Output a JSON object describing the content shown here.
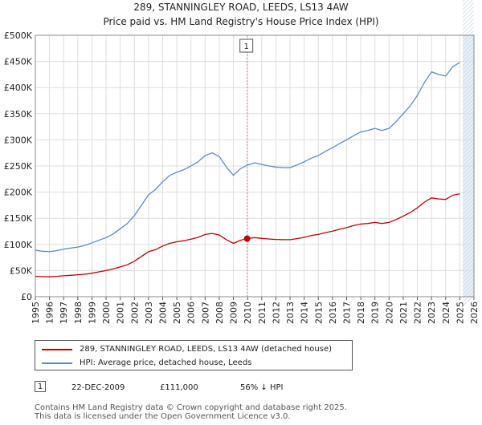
{
  "title_line1": "289, STANNINGLEY ROAD, LEEDS, LS13 4AW",
  "title_line2": "Price paid vs. HM Land Registry's House Price Index (HPI)",
  "colors": {
    "property": "#c00000",
    "hpi": "#5b8bd0",
    "marker_line": "#e08080",
    "future_shade": "#e8eef8",
    "grid": "#dddddd"
  },
  "legend": {
    "property_label": "289, STANNINGLEY ROAD, LEEDS, LS13 4AW (detached house)",
    "hpi_label": "HPI: Average price, detached house, Leeds"
  },
  "annotation": {
    "marker": "1",
    "date": "22-DEC-2009",
    "price": "£111,000",
    "hpi_diff": "56% ↓ HPI"
  },
  "footer_line1": "Contains HM Land Registry data © Crown copyright and database right 2025.",
  "footer_line2": "This data is licensed under the Open Government Licence v3.0.",
  "chart_data": {
    "type": "line",
    "title": "289, STANNINGLEY ROAD, LEEDS, LS13 4AW",
    "subtitle": "Price paid vs. HM Land Registry's House Price Index (HPI)",
    "xlabel": "",
    "ylabel": "",
    "xlim": [
      1995,
      2026
    ],
    "ylim": [
      0,
      500000
    ],
    "y_ticks": [
      0,
      50000,
      100000,
      150000,
      200000,
      250000,
      300000,
      350000,
      400000,
      450000,
      500000
    ],
    "y_tick_labels": [
      "£0",
      "£50K",
      "£100K",
      "£150K",
      "£200K",
      "£250K",
      "£300K",
      "£350K",
      "£400K",
      "£450K",
      "£500K"
    ],
    "x_ticks": [
      1995,
      1996,
      1997,
      1998,
      1999,
      2000,
      2001,
      2002,
      2003,
      2004,
      2005,
      2006,
      2007,
      2008,
      2009,
      2010,
      2011,
      2012,
      2013,
      2014,
      2015,
      2016,
      2017,
      2018,
      2019,
      2020,
      2021,
      2022,
      2023,
      2024,
      2025,
      2026
    ],
    "x_tick_labels": [
      "1995",
      "1996",
      "1997",
      "1998",
      "1999",
      "2000",
      "2001",
      "2002",
      "2003",
      "2004",
      "2005",
      "2006",
      "2007",
      "2008",
      "2009",
      "2010",
      "2011",
      "2012",
      "2013",
      "2014",
      "2015",
      "2016",
      "2017",
      "2018",
      "2019",
      "2020",
      "2021",
      "2022",
      "2023",
      "2024",
      "2025",
      "2026"
    ],
    "future_shade_start": 2025.2,
    "grid": true,
    "sale_marker": {
      "label": "1",
      "x": 2009.97,
      "y": 111000
    },
    "series": [
      {
        "name": "HPI: Average price, detached house, Leeds",
        "x": [
          1995.0,
          1995.5,
          1996.0,
          1996.5,
          1997.0,
          1997.5,
          1998.0,
          1998.5,
          1999.0,
          1999.5,
          2000.0,
          2000.5,
          2001.0,
          2001.5,
          2002.0,
          2002.5,
          2003.0,
          2003.5,
          2004.0,
          2004.5,
          2005.0,
          2005.5,
          2006.0,
          2006.5,
          2007.0,
          2007.5,
          2008.0,
          2008.5,
          2009.0,
          2009.5,
          2010.0,
          2010.5,
          2011.0,
          2011.5,
          2012.0,
          2012.5,
          2013.0,
          2013.5,
          2014.0,
          2014.5,
          2015.0,
          2015.5,
          2016.0,
          2016.5,
          2017.0,
          2017.5,
          2018.0,
          2018.5,
          2019.0,
          2019.5,
          2020.0,
          2020.5,
          2021.0,
          2021.5,
          2022.0,
          2022.5,
          2023.0,
          2023.5,
          2024.0,
          2024.5,
          2025.0
        ],
        "values": [
          89000,
          87000,
          86000,
          88000,
          91000,
          93000,
          95000,
          98000,
          103000,
          108000,
          113000,
          120000,
          130000,
          140000,
          155000,
          175000,
          195000,
          205000,
          220000,
          232000,
          238000,
          243000,
          250000,
          258000,
          270000,
          275000,
          268000,
          248000,
          232000,
          245000,
          252000,
          256000,
          253000,
          250000,
          248000,
          247000,
          247000,
          252000,
          258000,
          265000,
          270000,
          278000,
          285000,
          293000,
          300000,
          308000,
          315000,
          318000,
          322000,
          318000,
          322000,
          335000,
          350000,
          365000,
          385000,
          410000,
          430000,
          425000,
          422000,
          440000,
          448000
        ]
      },
      {
        "name": "289, STANNINGLEY ROAD, LEEDS, LS13 4AW (detached house)",
        "x": [
          1995.0,
          1995.5,
          1996.0,
          1996.5,
          1997.0,
          1997.5,
          1998.0,
          1998.5,
          1999.0,
          1999.5,
          2000.0,
          2000.5,
          2001.0,
          2001.5,
          2002.0,
          2002.5,
          2003.0,
          2003.5,
          2004.0,
          2004.5,
          2005.0,
          2005.5,
          2006.0,
          2006.5,
          2007.0,
          2007.5,
          2008.0,
          2008.5,
          2009.0,
          2009.5,
          2009.97,
          2010.5,
          2011.0,
          2011.5,
          2012.0,
          2012.5,
          2013.0,
          2013.5,
          2014.0,
          2014.5,
          2015.0,
          2015.5,
          2016.0,
          2016.5,
          2017.0,
          2017.5,
          2018.0,
          2018.5,
          2019.0,
          2019.5,
          2020.0,
          2020.5,
          2021.0,
          2021.5,
          2022.0,
          2022.5,
          2023.0,
          2023.5,
          2024.0,
          2024.5,
          2025.0
        ],
        "values": [
          39000,
          38500,
          38000,
          39000,
          40000,
          41000,
          42000,
          43000,
          45000,
          47500,
          50000,
          53000,
          57000,
          61000,
          68000,
          77000,
          86000,
          90000,
          97000,
          102000,
          105000,
          107000,
          110000,
          113500,
          119000,
          121000,
          118000,
          109000,
          102000,
          108000,
          111000,
          113000,
          111500,
          110500,
          109500,
          109000,
          109000,
          111000,
          113500,
          117000,
          119000,
          122500,
          125500,
          129000,
          132000,
          136000,
          139000,
          140000,
          142000,
          140000,
          142000,
          147500,
          154000,
          161000,
          170000,
          181000,
          189000,
          187000,
          186000,
          194000,
          197000
        ]
      }
    ]
  }
}
